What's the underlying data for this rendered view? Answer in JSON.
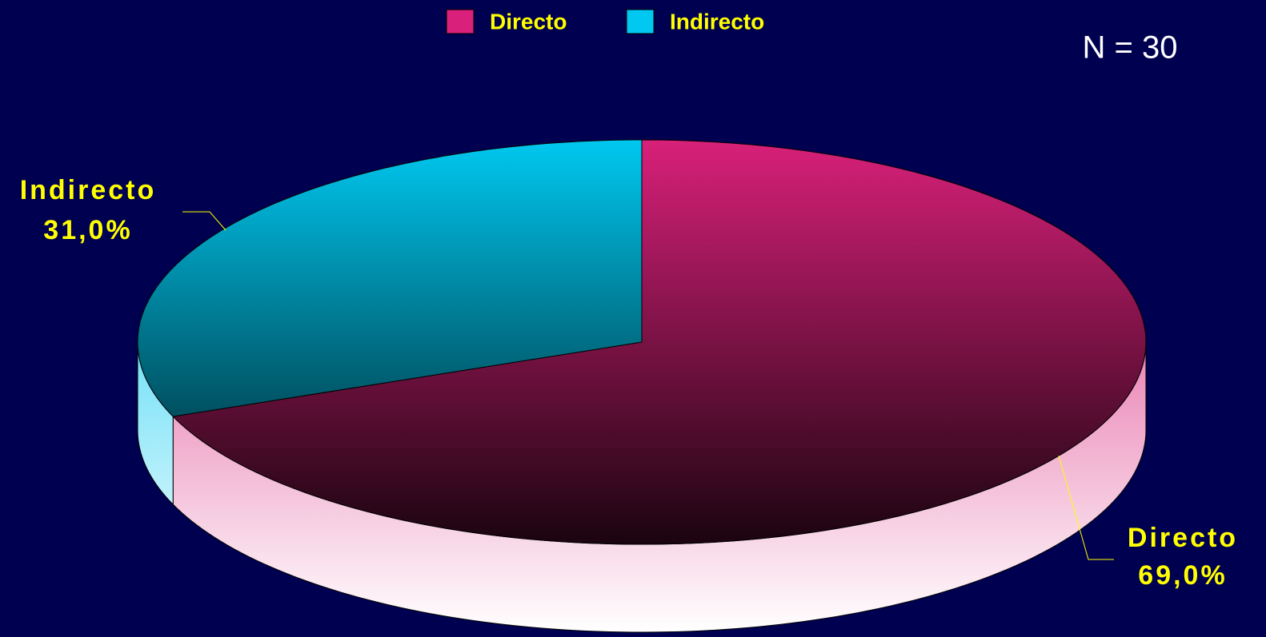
{
  "chart_data": {
    "type": "pie",
    "categories": [
      "Directo",
      "Indirecto"
    ],
    "values": [
      69,
      31
    ],
    "value_labels": [
      "69,0%",
      "31,0%"
    ],
    "colors": [
      "#d9207a",
      "#00c8f0"
    ],
    "annotation": "N = 30",
    "legend": "top"
  }
}
